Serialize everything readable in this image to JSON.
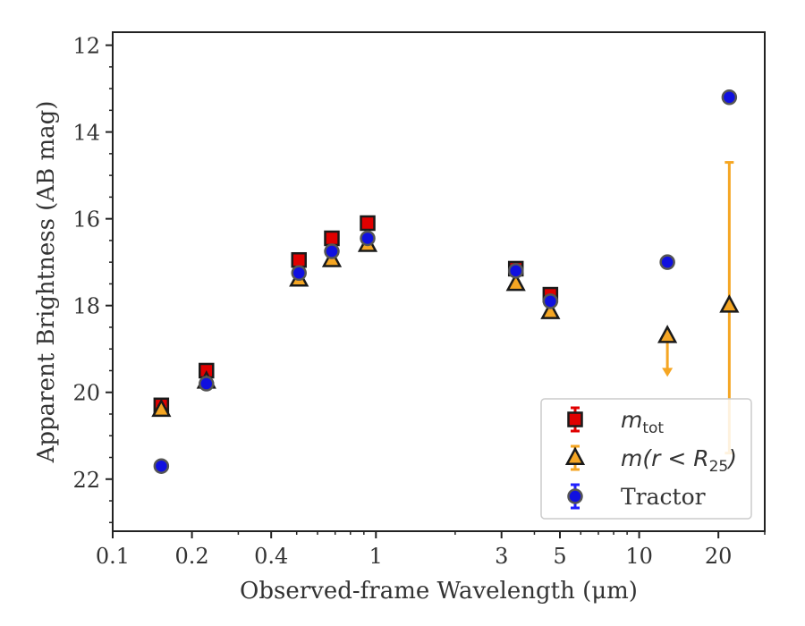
{
  "chart_data": {
    "type": "scatter",
    "xlabel": "Observed-frame Wavelength (μm)",
    "ylabel": "Apparent Brightness (AB mag)",
    "xscale": "log",
    "yaxis_inverted": true,
    "xlim": [
      0.1,
      30
    ],
    "ylim": [
      23.2,
      11.7
    ],
    "x_ticks": [
      0.1,
      0.2,
      0.4,
      1,
      3,
      5,
      10,
      20
    ],
    "x_tick_labels": [
      "0.1",
      "0.2",
      "0.4",
      "1",
      "3",
      "5",
      "10",
      "20"
    ],
    "y_ticks": [
      12,
      14,
      16,
      18,
      20,
      22
    ],
    "y_tick_labels": [
      "12",
      "14",
      "16",
      "18",
      "20",
      "22"
    ],
    "grid": false,
    "legend_placement": "bottom-right",
    "series": [
      {
        "name": "m_tot",
        "marker": "square",
        "color": "#e00000",
        "error_color": "#e00000",
        "points": [
          {
            "x": 0.153,
            "y": 20.3,
            "err": 0.1
          },
          {
            "x": 0.227,
            "y": 19.5,
            "err": 0.05
          },
          {
            "x": 0.51,
            "y": 16.95,
            "err": 0.05
          },
          {
            "x": 0.68,
            "y": 16.45,
            "err": 0.05
          },
          {
            "x": 0.93,
            "y": 16.1,
            "err": 0.05
          },
          {
            "x": 3.4,
            "y": 17.15,
            "err": 0.05
          },
          {
            "x": 4.6,
            "y": 17.75,
            "err": 0.05
          }
        ]
      },
      {
        "name": "m(r < R25)",
        "marker": "triangle",
        "color": "#f5a623",
        "error_color": "#f5a623",
        "points": [
          {
            "x": 0.153,
            "y": 20.4,
            "err": 0.05
          },
          {
            "x": 0.227,
            "y": 19.75,
            "err": 0.05
          },
          {
            "x": 0.51,
            "y": 17.4,
            "err": 0.05
          },
          {
            "x": 0.68,
            "y": 16.95,
            "err": 0.05
          },
          {
            "x": 0.93,
            "y": 16.6,
            "err": 0.05
          },
          {
            "x": 3.4,
            "y": 17.5,
            "err": 0.05
          },
          {
            "x": 4.6,
            "y": 18.15,
            "err": 0.05
          },
          {
            "x": 12.8,
            "y": 18.7,
            "upper_limit_to": 19.6
          },
          {
            "x": 22.0,
            "y": 18.0,
            "err_lo": 14.7,
            "err_hi": 21.4
          }
        ]
      },
      {
        "name": "Tractor",
        "marker": "circle",
        "color": "#1010e0",
        "error_color": "#2020ff",
        "points": [
          {
            "x": 0.153,
            "y": 21.7,
            "err": 0.05
          },
          {
            "x": 0.227,
            "y": 19.8,
            "err": 0.05
          },
          {
            "x": 0.51,
            "y": 17.25,
            "err": 0.05
          },
          {
            "x": 0.68,
            "y": 16.75,
            "err": 0.05
          },
          {
            "x": 0.93,
            "y": 16.45,
            "err": 0.05
          },
          {
            "x": 3.4,
            "y": 17.2,
            "err": 0.05
          },
          {
            "x": 4.6,
            "y": 17.9,
            "err": 0.05
          },
          {
            "x": 12.8,
            "y": 17.0,
            "err": 0.05
          },
          {
            "x": 22.0,
            "y": 13.2,
            "err": 0.05
          }
        ]
      }
    ],
    "legend": [
      {
        "math_main": "m",
        "math_sub": "tot",
        "text": ""
      },
      {
        "math_main": "m(r < R",
        "math_sub": "25",
        "math_tail": ")",
        "text": ""
      },
      {
        "text": "Tractor"
      }
    ]
  }
}
